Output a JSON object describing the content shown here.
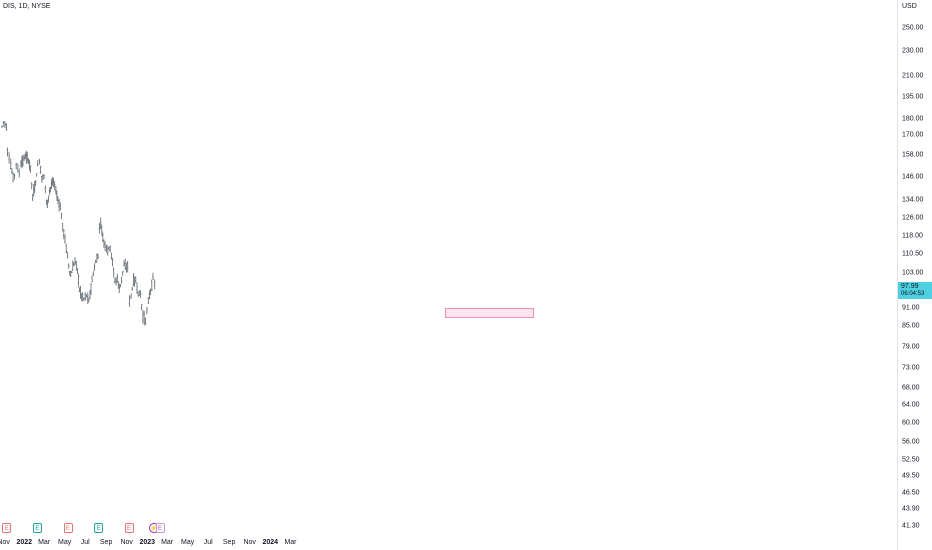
{
  "symbol": "DIS, 1D, NYSE",
  "currency": "USD",
  "last_price": "97.99",
  "countdown": "06:04:53",
  "colors": {
    "bars": "#5d6670",
    "last_price_bg": "#4dd0e1",
    "target_box": "#fce4f1",
    "earnings_red": "#e57373",
    "earnings_green": "#26a69a",
    "earnings_purple": "#ab47bc"
  },
  "events": [
    {
      "label": "E",
      "kind": "red",
      "date": "2021-11-10"
    },
    {
      "label": "E",
      "kind": "green",
      "date": "2022-02-09"
    },
    {
      "label": "E",
      "kind": "red",
      "date": "2022-05-11"
    },
    {
      "label": "E",
      "kind": "green",
      "date": "2022-08-10"
    },
    {
      "label": "E",
      "kind": "red",
      "date": "2022-11-08"
    },
    {
      "label": "⚡",
      "kind": "split",
      "date": "2023-01-20"
    },
    {
      "label": "E",
      "kind": "purple",
      "date": "2023-02-08"
    }
  ],
  "chart_data": {
    "type": "bar",
    "style": "ohlc",
    "y_scale": "log",
    "ylim": [
      41.3,
      270
    ],
    "y_ticks": [
      "250.00",
      "230.00",
      "210.00",
      "195.00",
      "180.00",
      "170.00",
      "158.00",
      "146.00",
      "134.00",
      "126.00",
      "118.00",
      "110.50",
      "103.00",
      "91.00",
      "85.00",
      "79.00",
      "73.00",
      "68.00",
      "64.00",
      "60.00",
      "56.00",
      "52.50",
      "49.50",
      "46.50",
      "43.90",
      "41.30"
    ],
    "x_ticks": [
      {
        "label": "Nov",
        "date": "2021-11-01"
      },
      {
        "label": "2022",
        "date": "2022-01-01",
        "bold": true
      },
      {
        "label": "Mar",
        "date": "2022-03-01"
      },
      {
        "label": "May",
        "date": "2022-05-01"
      },
      {
        "label": "Jul",
        "date": "2022-07-01"
      },
      {
        "label": "Sep",
        "date": "2022-09-01"
      },
      {
        "label": "Nov",
        "date": "2022-11-01"
      },
      {
        "label": "2023",
        "date": "2023-01-01",
        "bold": true
      },
      {
        "label": "Mar",
        "date": "2023-03-01"
      },
      {
        "label": "May",
        "date": "2023-05-01"
      },
      {
        "label": "Jul",
        "date": "2023-07-01"
      },
      {
        "label": "Sep",
        "date": "2023-09-01"
      },
      {
        "label": "Nov",
        "date": "2023-11-01"
      },
      {
        "label": "2024",
        "date": "2024-01-01",
        "bold": true
      },
      {
        "label": "Mar",
        "date": "2024-03-01"
      }
    ],
    "series": [
      {
        "values": [
          [
            "2021-10-27",
            175
          ],
          [
            "2021-11-01",
            178
          ],
          [
            "2021-11-05",
            177
          ],
          [
            "2021-11-09",
            175
          ],
          [
            "2021-11-12",
            160
          ],
          [
            "2021-11-17",
            157
          ],
          [
            "2021-11-22",
            152
          ],
          [
            "2021-11-29",
            145
          ],
          [
            "2021-12-03",
            147
          ],
          [
            "2021-12-08",
            153
          ],
          [
            "2021-12-13",
            150
          ],
          [
            "2021-12-17",
            148
          ],
          [
            "2021-12-22",
            153
          ],
          [
            "2021-12-28",
            155
          ],
          [
            "2022-01-04",
            157
          ],
          [
            "2022-01-10",
            156
          ],
          [
            "2022-01-14",
            155
          ],
          [
            "2022-01-20",
            150
          ],
          [
            "2022-01-26",
            135
          ],
          [
            "2022-02-01",
            141
          ],
          [
            "2022-02-04",
            143
          ],
          [
            "2022-02-10",
            152
          ],
          [
            "2022-02-15",
            155
          ],
          [
            "2022-02-22",
            145
          ],
          [
            "2022-03-01",
            147
          ],
          [
            "2022-03-08",
            133
          ],
          [
            "2022-03-11",
            132
          ],
          [
            "2022-03-17",
            139
          ],
          [
            "2022-03-23",
            142
          ],
          [
            "2022-03-29",
            143
          ],
          [
            "2022-04-05",
            139
          ],
          [
            "2022-04-11",
            134
          ],
          [
            "2022-04-18",
            131
          ],
          [
            "2022-04-25",
            122
          ],
          [
            "2022-05-02",
            116
          ],
          [
            "2022-05-09",
            110
          ],
          [
            "2022-05-13",
            106
          ],
          [
            "2022-05-19",
            102
          ],
          [
            "2022-05-25",
            105
          ],
          [
            "2022-06-01",
            108
          ],
          [
            "2022-06-08",
            104
          ],
          [
            "2022-06-14",
            97
          ],
          [
            "2022-06-20",
            95
          ],
          [
            "2022-06-27",
            94
          ],
          [
            "2022-07-05",
            95
          ],
          [
            "2022-07-12",
            93
          ],
          [
            "2022-07-18",
            98
          ],
          [
            "2022-07-25",
            103
          ],
          [
            "2022-08-01",
            107
          ],
          [
            "2022-08-08",
            110
          ],
          [
            "2022-08-12",
            121
          ],
          [
            "2022-08-16",
            124
          ],
          [
            "2022-08-22",
            117
          ],
          [
            "2022-08-29",
            114
          ],
          [
            "2022-09-06",
            112
          ],
          [
            "2022-09-13",
            113
          ],
          [
            "2022-09-20",
            107
          ],
          [
            "2022-09-27",
            100
          ],
          [
            "2022-10-04",
            101
          ],
          [
            "2022-10-10",
            97
          ],
          [
            "2022-10-17",
            101
          ],
          [
            "2022-10-24",
            106
          ],
          [
            "2022-10-31",
            105
          ],
          [
            "2022-11-04",
            106
          ],
          [
            "2022-11-09",
            93
          ],
          [
            "2022-11-14",
            95
          ],
          [
            "2022-11-21",
            100
          ],
          [
            "2022-11-28",
            100
          ],
          [
            "2022-12-05",
            96
          ],
          [
            "2022-12-12",
            95
          ],
          [
            "2022-12-19",
            88
          ],
          [
            "2022-12-27",
            87
          ],
          [
            "2023-01-04",
            93
          ],
          [
            "2023-01-11",
            97
          ],
          [
            "2023-01-18",
            101
          ],
          [
            "2023-01-23",
            99
          ],
          [
            "2023-01-25",
            98
          ]
        ]
      }
    ]
  }
}
